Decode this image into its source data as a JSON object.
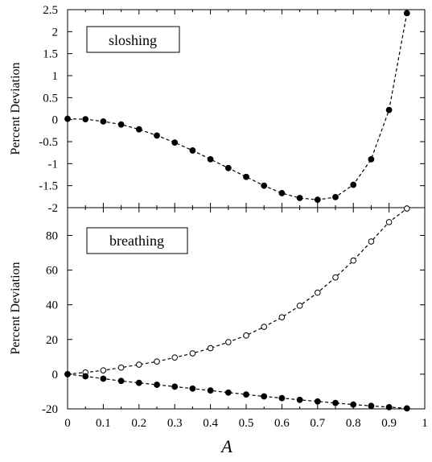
{
  "chart_data": [
    {
      "type": "line",
      "panel_label": "sloshing",
      "ylabel": "Percent Deviation",
      "xlim": [
        0,
        1
      ],
      "ylim": [
        -2,
        2.5
      ],
      "yticks": [
        2.5,
        2,
        1.5,
        1,
        0.5,
        0,
        -0.5,
        -1,
        -1.5,
        -2
      ],
      "ytick_labels": [
        "2.5",
        "2",
        "1.5",
        "1",
        "0.5",
        "0",
        "-0.5",
        "-1",
        "-1.5",
        "-2"
      ],
      "series": [
        {
          "marker": "filled-circle",
          "line": "dashed",
          "x": [
            0,
            0.05,
            0.1,
            0.15,
            0.2,
            0.25,
            0.3,
            0.35,
            0.4,
            0.45,
            0.5,
            0.55,
            0.6,
            0.65,
            0.7,
            0.75,
            0.8,
            0.85,
            0.9,
            0.95
          ],
          "y": [
            0.02,
            0.01,
            -0.04,
            -0.11,
            -0.22,
            -0.36,
            -0.52,
            -0.7,
            -0.9,
            -1.1,
            -1.3,
            -1.5,
            -1.67,
            -1.78,
            -1.82,
            -1.76,
            -1.48,
            -0.9,
            0.22,
            2.42
          ]
        }
      ]
    },
    {
      "type": "line",
      "panel_label": "breathing",
      "ylabel": "Percent Deviation",
      "xlabel": "A",
      "xlim": [
        0,
        1
      ],
      "ylim": [
        -20,
        96
      ],
      "yticks": [
        80,
        60,
        40,
        20,
        0,
        -20
      ],
      "ytick_labels": [
        "80",
        "60",
        "40",
        "20",
        "0",
        "-20"
      ],
      "xticks": [
        0,
        0.1,
        0.2,
        0.3,
        0.4,
        0.5,
        0.6,
        0.7,
        0.8,
        0.9,
        1
      ],
      "xtick_labels": [
        "0",
        "0.1",
        "0.2",
        "0.3",
        "0.4",
        "0.5",
        "0.6",
        "0.7",
        "0.8",
        "0.9",
        "1"
      ],
      "series": [
        {
          "marker": "open-circle",
          "line": "dashed",
          "x": [
            0,
            0.05,
            0.1,
            0.15,
            0.2,
            0.25,
            0.3,
            0.35,
            0.4,
            0.45,
            0.5,
            0.55,
            0.6,
            0.65,
            0.7,
            0.75,
            0.8,
            0.85,
            0.9,
            0.95
          ],
          "y": [
            0,
            1,
            2.2,
            3.8,
            5.5,
            7.3,
            9.6,
            12,
            15,
            18.5,
            22.3,
            27.3,
            32.8,
            39.5,
            47,
            55.8,
            65.5,
            76.5,
            87.7,
            95.5
          ]
        },
        {
          "marker": "filled-circle",
          "line": "dashed",
          "x": [
            0,
            0.05,
            0.1,
            0.15,
            0.2,
            0.25,
            0.3,
            0.35,
            0.4,
            0.45,
            0.5,
            0.55,
            0.6,
            0.65,
            0.7,
            0.75,
            0.8,
            0.85,
            0.9,
            0.95
          ],
          "y": [
            0,
            -1.2,
            -2.6,
            -3.9,
            -5,
            -6.1,
            -7.2,
            -8.3,
            -9.4,
            -10.6,
            -11.7,
            -12.8,
            -13.8,
            -14.8,
            -15.7,
            -16.6,
            -17.5,
            -18.3,
            -19,
            -19.7
          ]
        }
      ]
    }
  ]
}
